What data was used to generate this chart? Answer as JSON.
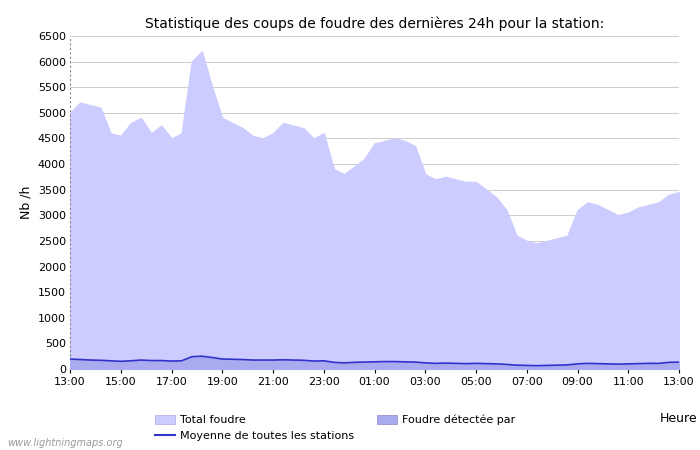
{
  "title": "Statistique des coups de foudre des dernières 24h pour la station:",
  "xlabel": "Heure",
  "ylabel": "Nb /h",
  "xlim_labels": [
    "13:00",
    "15:00",
    "17:00",
    "19:00",
    "21:00",
    "23:00",
    "01:00",
    "03:00",
    "05:00",
    "07:00",
    "09:00",
    "11:00",
    "13:00"
  ],
  "ylim": [
    0,
    6500
  ],
  "yticks": [
    0,
    500,
    1000,
    1500,
    2000,
    2500,
    3000,
    3500,
    4000,
    4500,
    5000,
    5500,
    6000,
    6500
  ],
  "bg_color": "#ffffff",
  "plot_bg_color": "#ffffff",
  "grid_color": "#cccccc",
  "fill_total_color": "#ccccff",
  "fill_detected_color": "#aaaaee",
  "line_color": "#3333cc",
  "watermark": "www.lightningmaps.org",
  "legend_total": "Total foudre",
  "legend_detected": "Foudre détectée par",
  "legend_moyenne": "Moyenne de toutes les stations",
  "total_foudre": [
    5000,
    5200,
    5150,
    5100,
    4600,
    4550,
    4800,
    4900,
    4600,
    4750,
    4500,
    4600,
    6000,
    6200,
    5500,
    4900,
    4800,
    4700,
    4550,
    4500,
    4600,
    4800,
    4750,
    4700,
    4500,
    4600,
    3900,
    3800,
    3950,
    4100,
    4400,
    4450,
    4500,
    4450,
    4350,
    3800,
    3700,
    3750,
    3700,
    3650,
    3650,
    3500,
    3350,
    3100,
    2600,
    2500,
    2450,
    2500,
    2550,
    2600,
    3100,
    3250,
    3200,
    3100,
    3000,
    3050,
    3150,
    3200,
    3250,
    3400,
    3450
  ],
  "detected_foudre": [
    190,
    185,
    175,
    170,
    160,
    150,
    160,
    175,
    165,
    165,
    155,
    160,
    240,
    250,
    225,
    195,
    190,
    185,
    175,
    175,
    175,
    180,
    175,
    170,
    155,
    160,
    130,
    120,
    130,
    135,
    140,
    145,
    145,
    140,
    135,
    120,
    110,
    115,
    110,
    105,
    110,
    105,
    100,
    90,
    75,
    70,
    65,
    70,
    75,
    80,
    100,
    110,
    105,
    100,
    95,
    100,
    105,
    110,
    110,
    130,
    135
  ],
  "moyenne": [
    195,
    185,
    175,
    170,
    160,
    150,
    160,
    175,
    165,
    165,
    155,
    160,
    240,
    250,
    225,
    195,
    190,
    185,
    175,
    175,
    175,
    180,
    175,
    170,
    155,
    160,
    130,
    120,
    130,
    135,
    140,
    145,
    145,
    140,
    135,
    120,
    110,
    115,
    110,
    105,
    110,
    105,
    100,
    90,
    75,
    70,
    65,
    70,
    75,
    80,
    100,
    110,
    105,
    100,
    95,
    100,
    105,
    110,
    110,
    130,
    135
  ]
}
